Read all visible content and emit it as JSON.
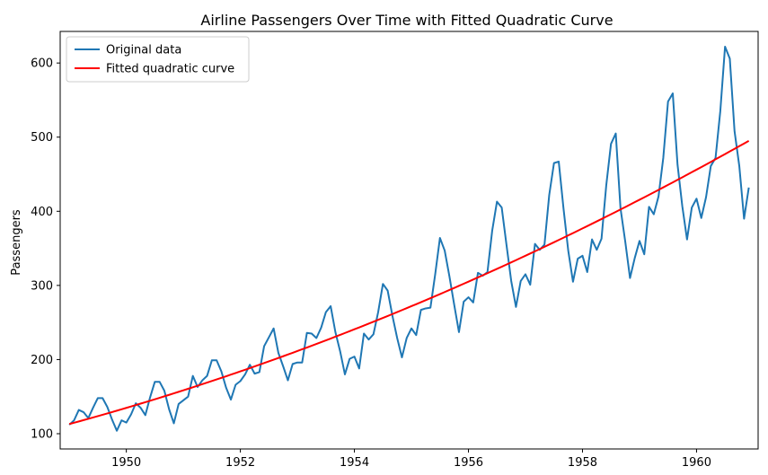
{
  "chart_data": {
    "type": "line",
    "title": "Airline Passengers Over Time with Fitted Quadratic Curve",
    "xlabel": "",
    "ylabel": "Passengers",
    "xlim": [
      1948.84,
      1961.08
    ],
    "ylim": [
      79.4,
      642.6
    ],
    "xticks": [
      1950,
      1952,
      1954,
      1956,
      1958,
      1960
    ],
    "yticks": [
      100,
      200,
      300,
      400,
      500,
      600
    ],
    "grid": false,
    "legend_position": "upper-left",
    "colors": {
      "original": "#1f77b4",
      "fitted": "#ff0000"
    },
    "x_start": "1949-01",
    "x_step": "monthly",
    "series": [
      {
        "name": "Original data",
        "color": "#1f77b4",
        "values": [
          112,
          118,
          132,
          129,
          121,
          135,
          148,
          148,
          136,
          119,
          104,
          118,
          115,
          126,
          141,
          135,
          125,
          149,
          170,
          170,
          158,
          133,
          114,
          140,
          145,
          150,
          178,
          163,
          172,
          178,
          199,
          199,
          184,
          162,
          146,
          166,
          171,
          180,
          193,
          181,
          183,
          218,
          230,
          242,
          209,
          191,
          172,
          194,
          196,
          196,
          236,
          235,
          229,
          243,
          264,
          272,
          237,
          211,
          180,
          201,
          204,
          188,
          235,
          227,
          234,
          264,
          302,
          293,
          259,
          229,
          203,
          229,
          242,
          233,
          267,
          269,
          270,
          315,
          364,
          347,
          312,
          274,
          237,
          278,
          284,
          277,
          317,
          313,
          318,
          374,
          413,
          405,
          355,
          306,
          271,
          306,
          315,
          301,
          356,
          348,
          355,
          422,
          465,
          467,
          404,
          347,
          305,
          336,
          340,
          318,
          362,
          348,
          363,
          435,
          491,
          505,
          404,
          359,
          310,
          337,
          360,
          342,
          406,
          396,
          420,
          472,
          548,
          559,
          463,
          407,
          362,
          405,
          417,
          391,
          419,
          461,
          472,
          535,
          622,
          606,
          508,
          461,
          390,
          432
        ]
      },
      {
        "name": "Fitted quadratic curve",
        "color": "#ff0000",
        "quadratic_fit": {
          "start": 113,
          "end": 495,
          "mid_1955": 272
        }
      }
    ]
  }
}
